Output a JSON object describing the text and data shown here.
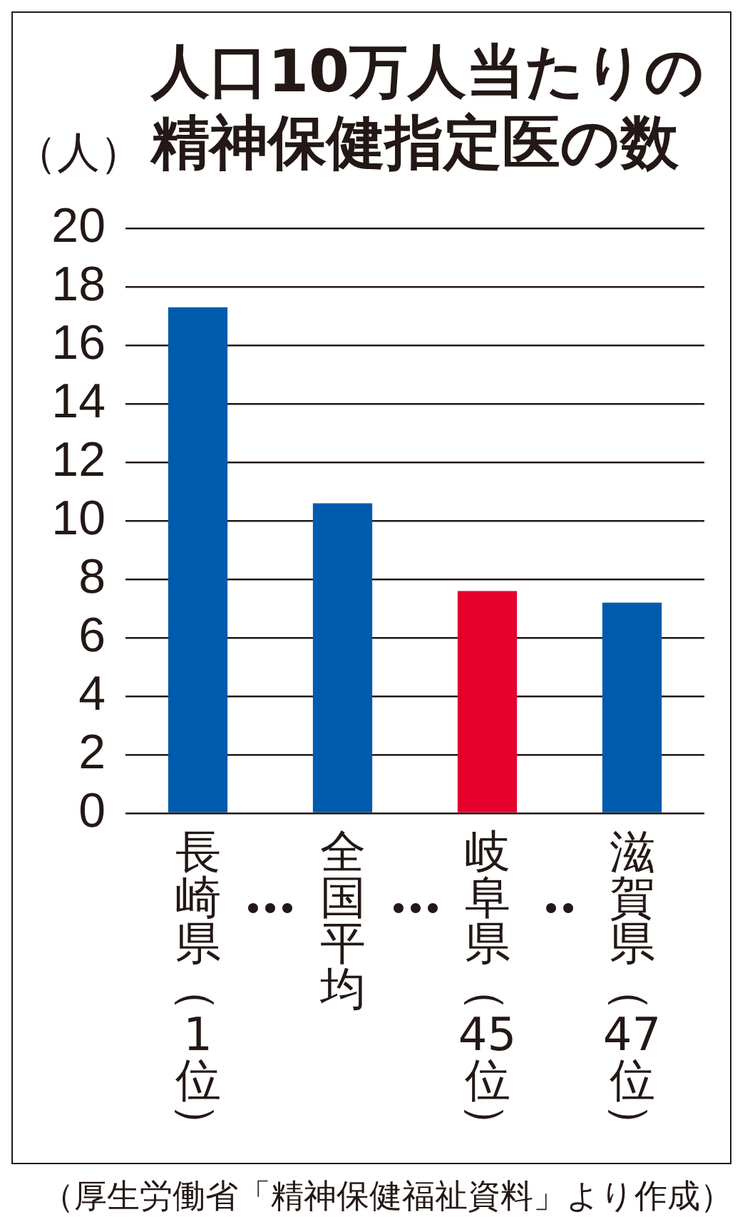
{
  "chart_data": {
    "type": "bar",
    "title": "人口10万人当たりの精神保健指定医の数",
    "ylabel": "（人）",
    "categories": [
      "長崎県（1位）",
      "全国平均",
      "岐阜県（45位）",
      "滋賀県（47位）"
    ],
    "values": [
      17.3,
      10.6,
      7.6,
      7.2
    ],
    "colors": [
      "#005bac",
      "#005bac",
      "#e5002d",
      "#005bac"
    ],
    "ylim": [
      0,
      20
    ],
    "yticks": [
      0,
      2,
      4,
      6,
      8,
      10,
      12,
      14,
      16,
      18,
      20
    ],
    "grid": "y",
    "annotations": [
      "（厚生労働省「精神保健福祉資料」より作成）"
    ]
  }
}
